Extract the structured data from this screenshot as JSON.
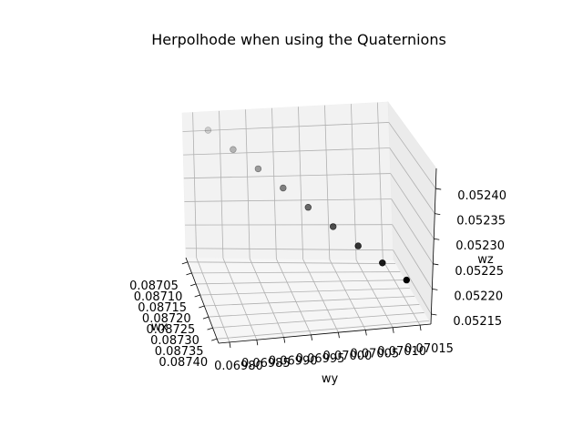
{
  "chart_data": {
    "type": "scatter",
    "projection": "3d",
    "title": "Herpolhode when using the Quaternions",
    "xlabel": "wx",
    "ylabel": "wy",
    "zlabel": "wz",
    "x_ticks": [
      "0.08705",
      "0.08710",
      "0.08715",
      "0.08720",
      "0.08725",
      "0.08730",
      "0.08735",
      "0.08740"
    ],
    "y_ticks": [
      "0.06980",
      "0.06985",
      "0.06990",
      "0.06995",
      "0.07000",
      "0.07005",
      "0.07010",
      "0.07015"
    ],
    "z_ticks": [
      "0.05215",
      "0.05220",
      "0.05225",
      "0.05230",
      "0.05235",
      "0.05240"
    ],
    "xlim": [
      0.08703,
      0.08742
    ],
    "ylim": [
      0.06978,
      0.07017
    ],
    "zlim": [
      0.05213,
      0.05244
    ],
    "grid": true,
    "marker_color": "#000000",
    "series": [
      {
        "x": [
          0.0871,
          0.08714,
          0.08718,
          0.08722,
          0.08726,
          0.0873,
          0.08734,
          0.08737,
          0.0874
        ],
        "y": [
          0.06982,
          0.06986,
          0.0699,
          0.06994,
          0.06998,
          0.07002,
          0.07006,
          0.0701,
          0.07014
        ],
        "z": [
          0.05241,
          0.05239,
          0.05237,
          0.05235,
          0.05233,
          0.05231,
          0.05229,
          0.05227,
          0.05225
        ]
      }
    ]
  }
}
